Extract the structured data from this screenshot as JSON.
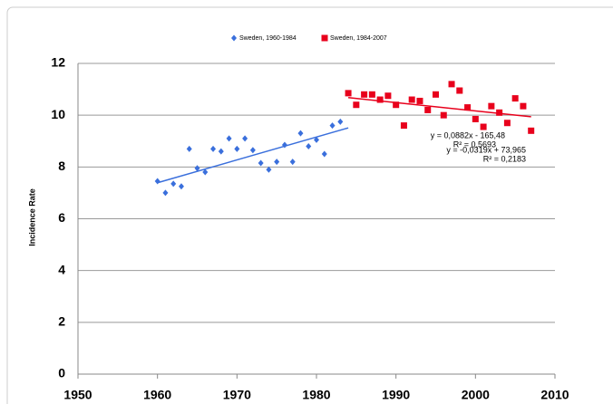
{
  "chart_data": {
    "type": "scatter",
    "y_label": "Incidence Rate",
    "xlim": [
      1950,
      2010
    ],
    "xticks": [
      1950,
      1960,
      1970,
      1980,
      1990,
      2000,
      2010
    ],
    "ylim": [
      0,
      12
    ],
    "yticks": [
      0,
      2,
      4,
      6,
      8,
      10,
      12
    ],
    "grid": true,
    "series": [
      {
        "name": "Sweden, 1960-1984",
        "color": "#3a6fdc",
        "marker": "diamond",
        "x": [
          1960,
          1961,
          1962,
          1963,
          1964,
          1965,
          1966,
          1967,
          1968,
          1969,
          1970,
          1971,
          1972,
          1973,
          1974,
          1975,
          1976,
          1977,
          1978,
          1979,
          1980,
          1981,
          1982,
          1983
        ],
        "values": [
          7.45,
          7.0,
          7.35,
          7.25,
          8.7,
          7.95,
          7.8,
          8.7,
          8.6,
          9.1,
          8.7,
          9.1,
          8.65,
          8.15,
          7.9,
          8.2,
          8.85,
          8.2,
          9.3,
          8.8,
          9.05,
          8.5,
          9.6,
          9.75
        ],
        "trend": {
          "x": [
            1960,
            1984
          ],
          "values": [
            7.39,
            9.51
          ]
        },
        "equation": "y = 0,0882x - 165,48",
        "r2": "R² = 0,5693"
      },
      {
        "name": "Sweden, 1984-2007",
        "color": "#e8001c",
        "marker": "square",
        "x": [
          1984,
          1985,
          1986,
          1987,
          1988,
          1989,
          1990,
          1991,
          1992,
          1993,
          1994,
          1995,
          1996,
          1997,
          1998,
          1999,
          2000,
          2001,
          2002,
          2003,
          2004,
          2005,
          2006,
          2007
        ],
        "values": [
          10.85,
          10.4,
          10.8,
          10.8,
          10.6,
          10.75,
          10.4,
          9.6,
          10.6,
          10.55,
          10.2,
          10.8,
          10.0,
          11.2,
          10.95,
          10.3,
          9.85,
          9.55,
          10.35,
          10.1,
          9.7,
          10.65,
          10.35,
          9.4
        ],
        "trend": {
          "x": [
            1984,
            2007
          ],
          "values": [
            10.68,
            9.94
          ]
        },
        "equation": "y = -0,0319x + 73,965",
        "r2": "R² = 0,2183"
      }
    ]
  }
}
